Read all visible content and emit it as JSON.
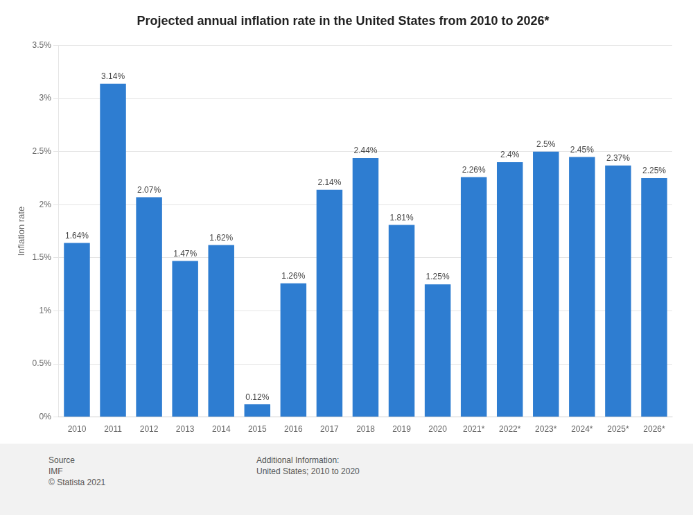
{
  "chart_data": {
    "type": "bar",
    "title": "Projected annual inflation rate in the United States from 2010 to 2026*",
    "y_label": "Inflation rate",
    "categories": [
      "2010",
      "2011",
      "2012",
      "2013",
      "2014",
      "2015",
      "2016",
      "2017",
      "2018",
      "2019",
      "2020",
      "2021*",
      "2022*",
      "2023*",
      "2024*",
      "2025*",
      "2026*"
    ],
    "values": [
      1.64,
      3.14,
      2.07,
      1.47,
      1.62,
      0.12,
      1.26,
      2.14,
      2.44,
      1.81,
      1.25,
      2.26,
      2.4,
      2.5,
      2.45,
      2.37,
      2.25
    ],
    "value_labels": [
      "1.64%",
      "3.14%",
      "2.07%",
      "1.47%",
      "1.62%",
      "0.12%",
      "1.26%",
      "2.14%",
      "2.44%",
      "1.81%",
      "1.25%",
      "2.26%",
      "2.4%",
      "2.5%",
      "2.45%",
      "2.37%",
      "2.25%"
    ],
    "data_labels": true,
    "color": "#2e7dd1",
    "ylim": [
      0,
      3.5
    ],
    "yticks": [
      {
        "value": 0,
        "label": "0%"
      },
      {
        "value": 0.5,
        "label": "0.5%"
      },
      {
        "value": 1.0,
        "label": "1%"
      },
      {
        "value": 1.5,
        "label": "1.5%"
      },
      {
        "value": 2.0,
        "label": "2%"
      },
      {
        "value": 2.5,
        "label": "2.5%"
      },
      {
        "value": 3.0,
        "label": "3%"
      },
      {
        "value": 3.5,
        "label": "3.5%"
      }
    ],
    "grid": true,
    "annotations": [
      "Source\nIMF\n© Statista 2021",
      "Additional Information:\nUnited States; 2010 to 2020"
    ]
  }
}
